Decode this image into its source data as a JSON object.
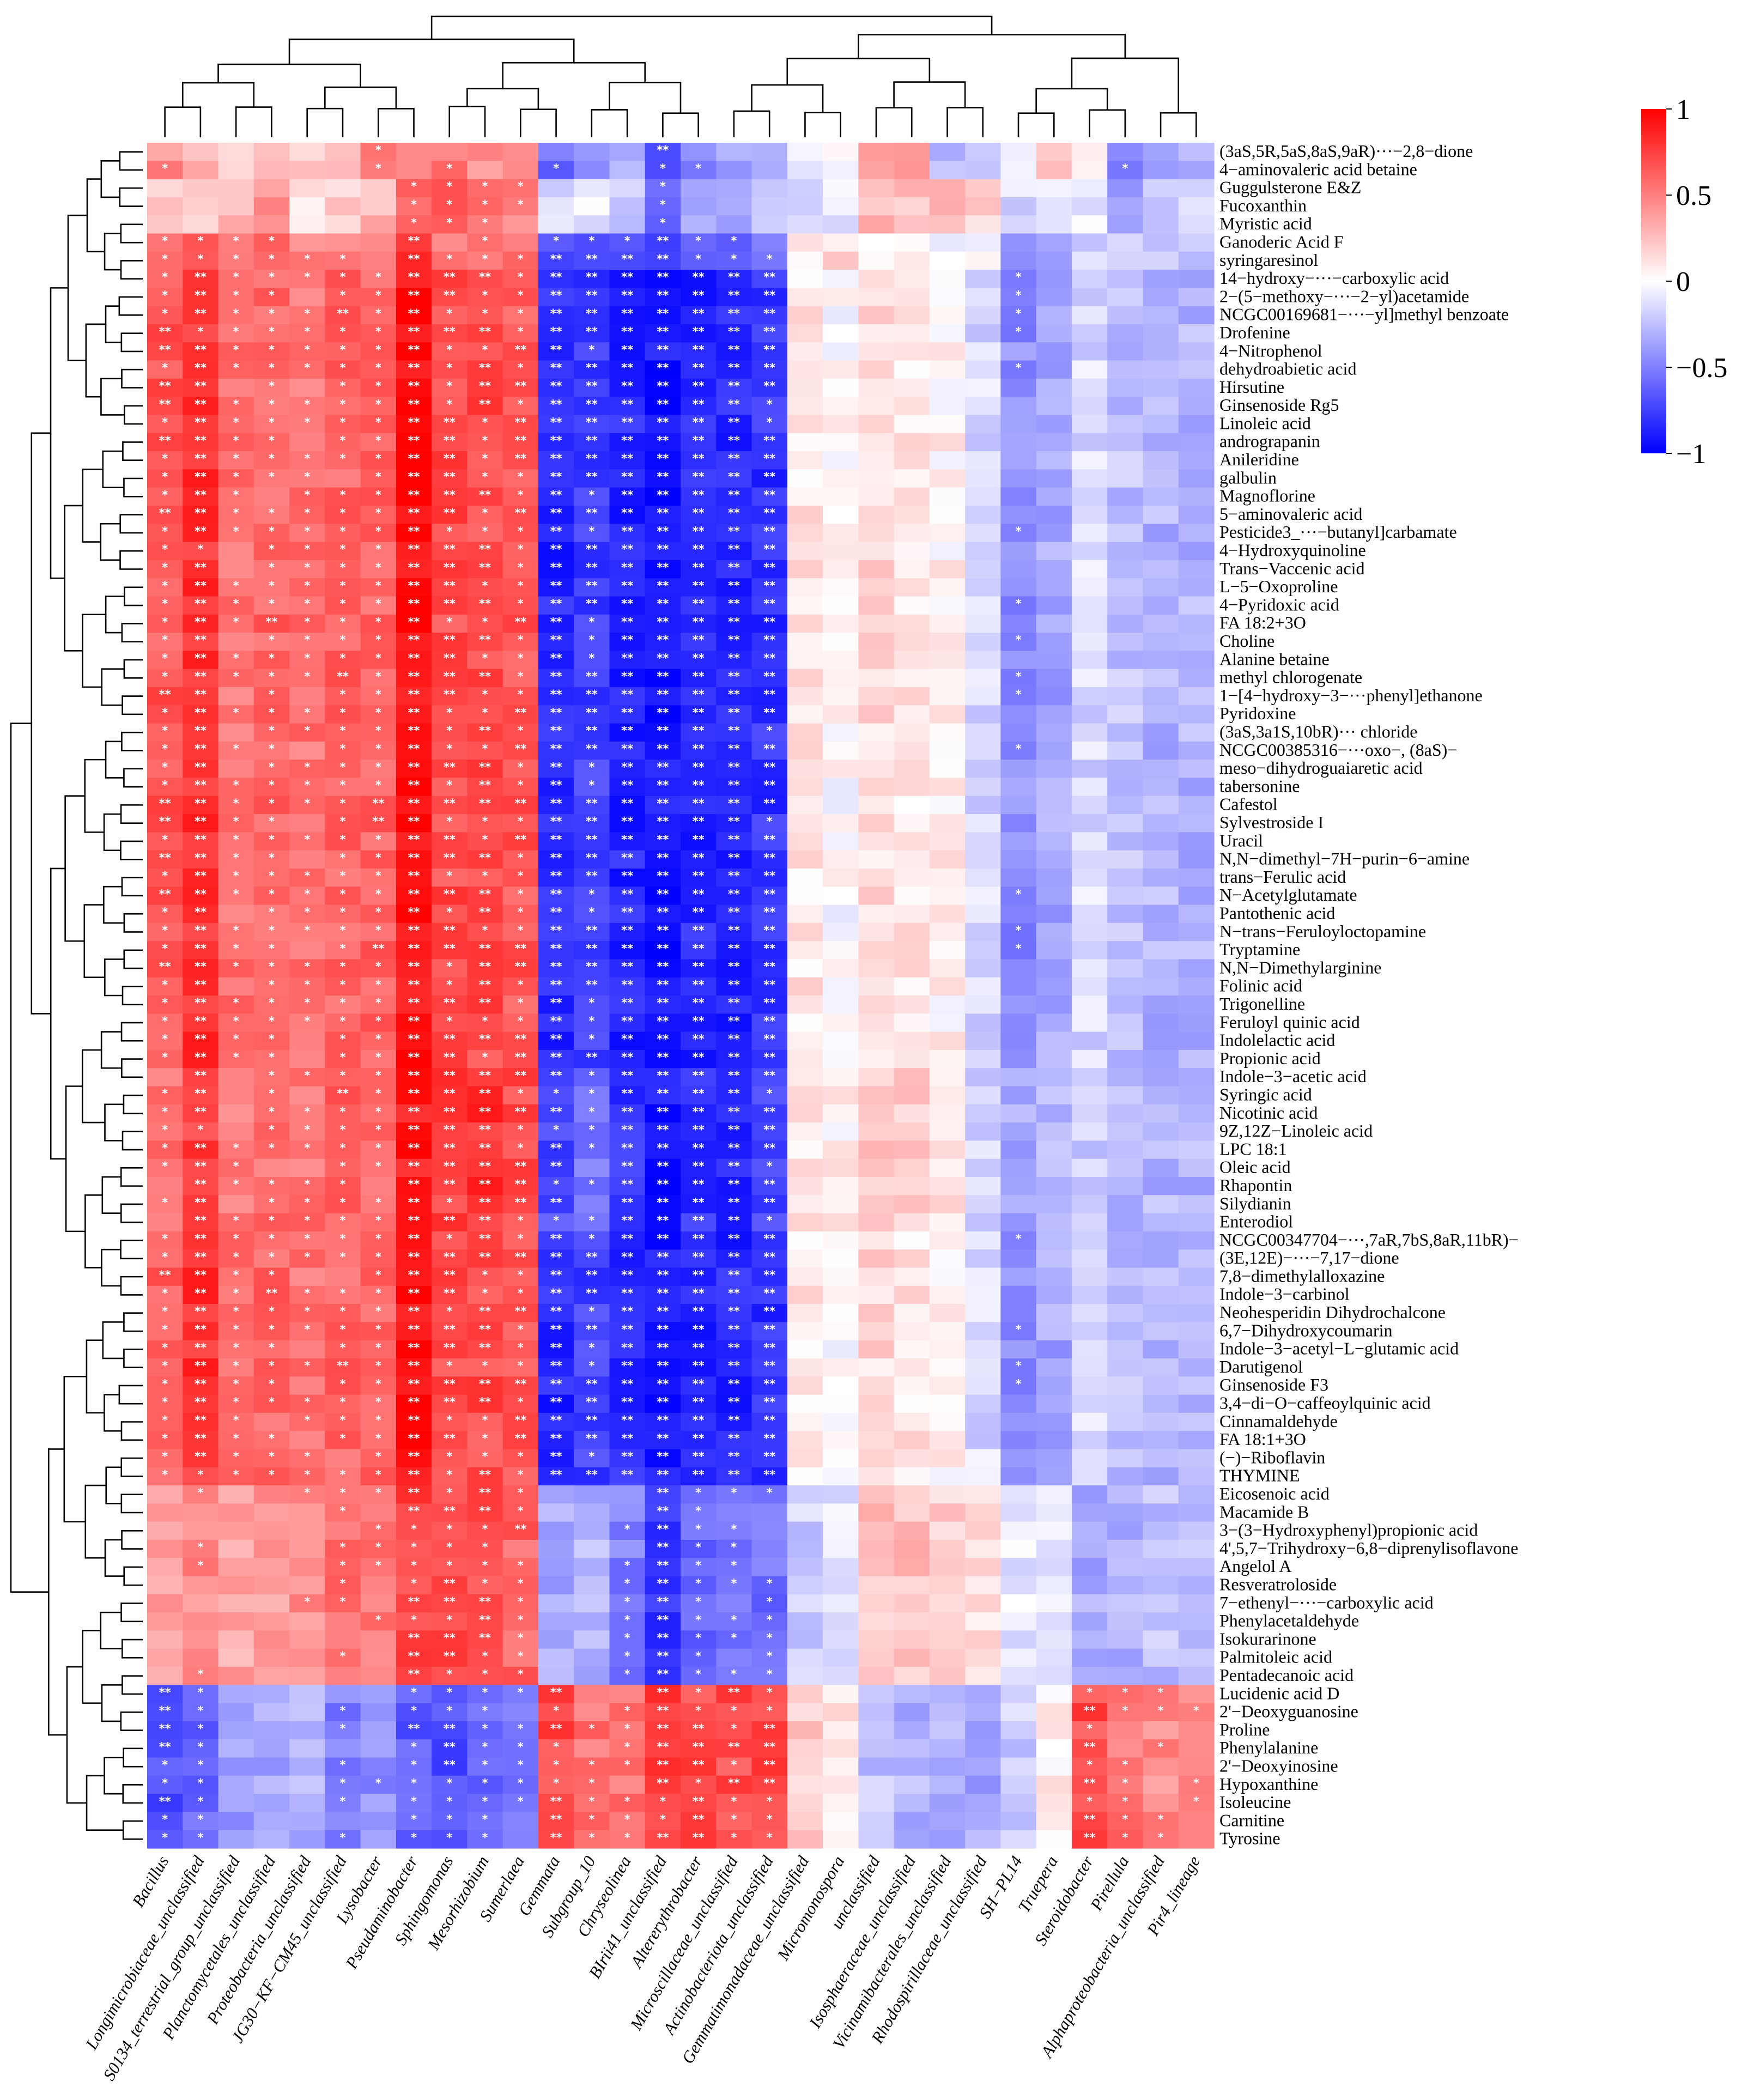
{
  "chart_data": {
    "type": "heatmap",
    "title": "",
    "colorscale": {
      "min": -1,
      "max": 1,
      "low_color": "#0000ff",
      "mid_color": "#ffffff",
      "high_color": "#ff0000"
    },
    "legend": {
      "ticks": [
        1,
        0.5,
        0,
        -0.5,
        -1
      ],
      "tick_labels": [
        "1",
        "0.5",
        "0",
        "−0.5",
        "−1"
      ],
      "position": "top-right"
    },
    "columns": [
      "Bacillus",
      "Longimicrobiaceae_unclassified",
      "S0134_terrestrial_group_unclassified",
      "Planctomycetales_unclassified",
      "Proteobacteria_unclassified",
      "JG30−KF−CM45_unclassified",
      "Lysobacter",
      "Pseudaminobacter",
      "Sphingomonas",
      "Mesorhizobium",
      "Sumerlaea",
      "Gemmata",
      "Subgroup_10",
      "Chryseolinea",
      "BIrii41_unclassified",
      "Altererythrobacter",
      "Microscillaceae_unclassified",
      "Actinobacteriota_unclassified",
      "Gemmatimonadaceae_unclassified",
      "Micromonospora",
      "unclassified",
      "Isosphaeraceae_unclassified",
      "Vicinamibacterales_unclassified",
      "Rhodospirillaceae_unclassified",
      "SH−PL14",
      "Truepera",
      "Steroidobacter",
      "Pirellula",
      "Alphaproteobacteria_unclassified",
      "Pir4_lineage"
    ],
    "rows": [
      "(3aS,5R,5aS,8aS,9aR)···−2,8−dione",
      "4−aminovaleric acid betaine",
      "Guggulsterone E&Z",
      "Fucoxanthin",
      "Myristic acid",
      "Ganoderic Acid F",
      "syringaresinol",
      "14−hydroxy−···−carboxylic acid",
      "2−(5−methoxy−···−2−yl)acetamide",
      "NCGC00169681−···−yl]methyl benzoate",
      "Drofenine",
      "4−Nitrophenol",
      "dehydroabietic acid",
      "Hirsutine",
      "Ginsenoside Rg5",
      "Linoleic acid",
      "andrograpanin",
      "Anileridine",
      "galbulin",
      "Magnoflorine",
      "5−aminovaleric acid",
      "Pesticide3_···−butanyl]carbamate",
      "4−Hydroxyquinoline",
      "Trans−Vaccenic acid",
      "L−5−Oxoproline",
      "4−Pyridoxic acid",
      "FA 18:2+3O",
      "Choline",
      "Alanine betaine",
      "methyl chlorogenate",
      "1−[4−hydroxy−3−···phenyl]ethanone",
      "Pyridoxine",
      "(3aS,3a1S,10bR)··· chloride",
      "NCGC00385316−···oxo−, (8aS)−",
      "meso−dihydroguaiaretic acid",
      "tabersonine",
      "Cafestol",
      "Sylvestroside I",
      "Uracil",
      "N,N−dimethyl−7H−purin−6−amine",
      "trans−Ferulic acid",
      "N−Acetylglutamate",
      "Pantothenic acid",
      "N−trans−Feruloyloctopamine",
      "Tryptamine",
      "N,N−Dimethylarginine",
      "Folinic acid",
      "Trigonelline",
      "Feruloyl quinic acid",
      "Indolelactic acid",
      "Propionic acid",
      "Indole−3−acetic acid",
      "Syringic acid",
      "Nicotinic acid",
      "9Z,12Z−Linoleic acid",
      "LPC 18:1",
      "Oleic acid",
      "Rhapontin",
      "Silydianin",
      "Enterodiol",
      "NCGC00347704−···,7aR,7bS,8aR,11bR)−",
      "(3E,12E)−···−7,17−dione",
      "7,8−dimethylalloxazine",
      "Indole−3−carbinol",
      "Neohesperidin Dihydrochalcone",
      "6,7−Dihydroxycoumarin",
      "Indole−3−acetyl−L−glutamic acid",
      "Darutigenol",
      "Ginsenoside F3",
      "3,4−di−O−caffeoylquinic acid",
      "Cinnamaldehyde",
      "FA 18:1+3O",
      "(−)−Riboflavin",
      "THYMINE",
      "Eicosenoic acid",
      "Macamide B",
      "3−(3−Hydroxyphenyl)propionic acid",
      "4',5,7−Trihydroxy−6,8−diprenylisoflavone",
      "Angelol A",
      "Resveratroloside",
      "7−ethenyl−···−carboxylic acid",
      "Phenylacetaldehyde",
      "Isokurarinone",
      "Palmitoleic acid",
      "Pentadecanoic acid",
      "Lucidenic acid D",
      "2'−Deoxyguanosine",
      "Proline",
      "Phenylalanine",
      "2'−Deoxyinosine",
      "Hypoxanthine",
      "Isoleucine",
      "Carnitine",
      "Tyrosine"
    ],
    "group_profiles": {
      "g0": [
        0.45,
        0.3,
        0.25,
        0.3,
        0.2,
        0.35,
        0.45,
        0.55,
        0.5,
        0.4,
        0.4,
        -0.55,
        -0.4,
        -0.3,
        -0.7,
        -0.45,
        -0.4,
        -0.35,
        -0.1,
        -0.05,
        0.45,
        0.35,
        -0.3,
        -0.2,
        -0.05,
        0.25,
        0.1,
        -0.55,
        -0.4,
        -0.35
      ],
      "g1": [
        0.25,
        0.2,
        0.25,
        0.4,
        0.15,
        0.2,
        0.3,
        0.55,
        0.75,
        0.6,
        0.45,
        -0.15,
        -0.1,
        -0.25,
        -0.65,
        -0.3,
        -0.35,
        -0.3,
        -0.15,
        -0.1,
        0.3,
        0.25,
        0.35,
        0.15,
        -0.15,
        -0.05,
        -0.1,
        -0.4,
        -0.25,
        -0.2
      ],
      "g2": [
        0.55,
        0.6,
        0.5,
        0.55,
        0.45,
        0.5,
        0.55,
        0.8,
        0.55,
        0.55,
        0.55,
        -0.75,
        -0.65,
        -0.65,
        -0.75,
        -0.65,
        -0.65,
        -0.6,
        0.1,
        0.15,
        0.1,
        0.0,
        0.0,
        -0.05,
        -0.35,
        -0.3,
        -0.15,
        -0.2,
        -0.2,
        -0.25
      ],
      "g3": [
        0.65,
        0.8,
        0.55,
        0.6,
        0.55,
        0.6,
        0.6,
        0.95,
        0.7,
        0.7,
        0.65,
        -0.85,
        -0.75,
        -0.85,
        -0.9,
        -0.85,
        -0.85,
        -0.8,
        0.1,
        0.0,
        0.15,
        0.1,
        0.05,
        -0.15,
        -0.45,
        -0.35,
        -0.15,
        -0.25,
        -0.3,
        -0.3
      ],
      "g4": [
        0.55,
        0.75,
        0.5,
        0.55,
        0.55,
        0.65,
        0.55,
        0.9,
        0.75,
        0.8,
        0.7,
        -0.7,
        -0.55,
        -0.8,
        -0.9,
        -0.8,
        -0.85,
        -0.75,
        0.1,
        0.05,
        0.2,
        0.2,
        0.1,
        -0.15,
        -0.35,
        -0.25,
        -0.2,
        -0.3,
        -0.3,
        -0.3
      ],
      "g5": [
        0.4,
        0.45,
        0.35,
        0.4,
        0.45,
        0.55,
        0.55,
        0.75,
        0.75,
        0.7,
        0.6,
        -0.35,
        -0.3,
        -0.5,
        -0.8,
        -0.6,
        -0.55,
        -0.55,
        -0.2,
        -0.1,
        0.25,
        0.25,
        0.2,
        0.15,
        -0.1,
        -0.1,
        -0.35,
        -0.3,
        -0.25,
        -0.25
      ],
      "g6": [
        -0.7,
        -0.6,
        -0.4,
        -0.35,
        -0.3,
        -0.5,
        -0.45,
        -0.65,
        -0.7,
        -0.6,
        -0.55,
        0.7,
        0.55,
        0.55,
        0.75,
        0.7,
        0.7,
        0.75,
        0.2,
        0.1,
        -0.25,
        -0.3,
        -0.3,
        -0.35,
        -0.2,
        0.05,
        0.7,
        0.55,
        0.45,
        0.5
      ]
    },
    "row_groups": [
      "g0",
      "g0",
      "g1",
      "g1",
      "g1",
      "g2",
      "g2",
      "g3",
      "g3",
      "g3",
      "g3",
      "g3",
      "g3",
      "g3",
      "g3",
      "g3",
      "g3",
      "g3",
      "g3",
      "g3",
      "g3",
      "g3",
      "g3",
      "g3",
      "g3",
      "g3",
      "g3",
      "g3",
      "g3",
      "g3",
      "g3",
      "g3",
      "g3",
      "g3",
      "g3",
      "g3",
      "g3",
      "g3",
      "g3",
      "g3",
      "g3",
      "g3",
      "g3",
      "g3",
      "g3",
      "g3",
      "g3",
      "g3",
      "g3",
      "g3",
      "g3",
      "g4",
      "g4",
      "g4",
      "g4",
      "g4",
      "g4",
      "g4",
      "g4",
      "g4",
      "g3",
      "g3",
      "g3",
      "g3",
      "g3",
      "g3",
      "g3",
      "g3",
      "g3",
      "g3",
      "g3",
      "g3",
      "g3",
      "g3",
      "g5",
      "g5",
      "g5",
      "g5",
      "g5",
      "g5",
      "g5",
      "g5",
      "g5",
      "g5",
      "g5",
      "g6",
      "g6",
      "g6",
      "g6",
      "g6",
      "g6",
      "g6",
      "g6",
      "g6"
    ],
    "significance": {
      "one_star": 0.5,
      "two_star": 0.7,
      "one_star_label": "*",
      "two_star_label": "**"
    }
  }
}
